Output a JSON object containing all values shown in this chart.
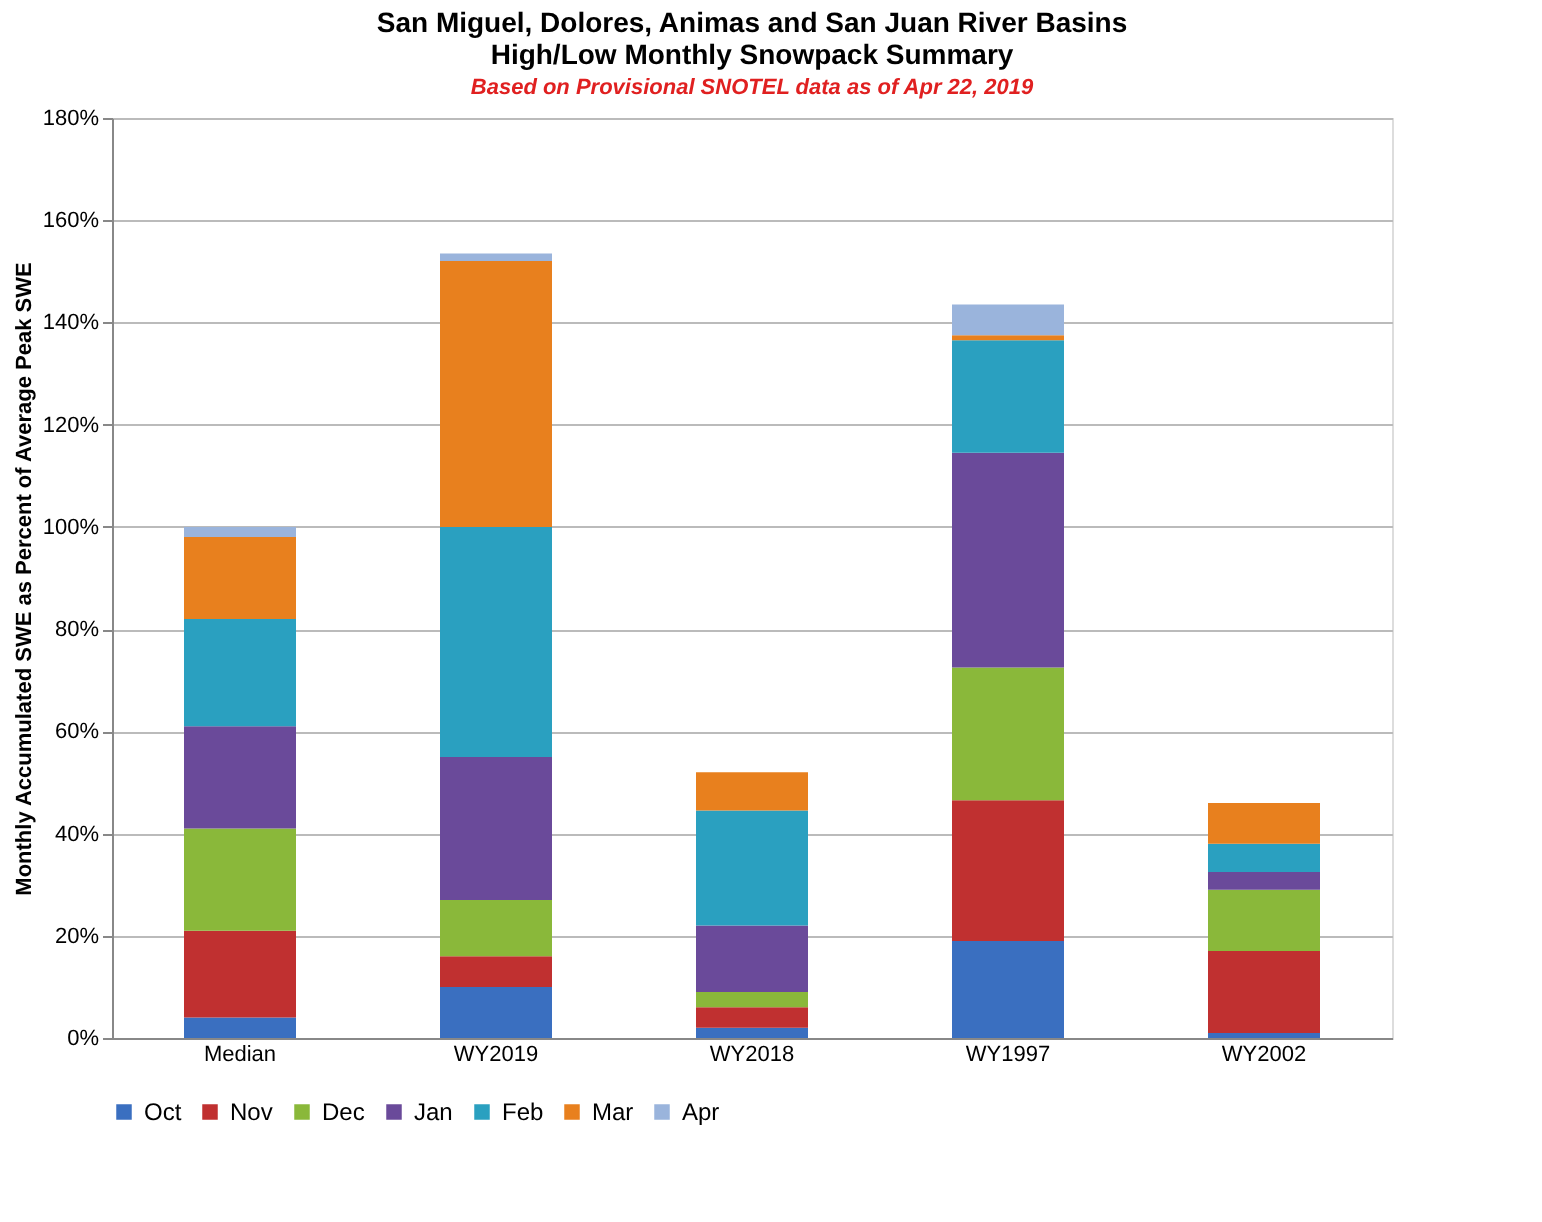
{
  "chart_data": {
    "type": "bar",
    "title": [
      "San Miguel, Dolores, Animas and San Juan River Basins",
      "High/Low Monthly  Snowpack Summary"
    ],
    "subtitle": "Based on Provisional SNOTEL data as of Apr 22, 2019",
    "ylabel": "Monthly Accumulated SWE as Percent of Average Peak SWE",
    "categories": [
      "Median",
      "WY2019",
      "WY2018",
      "WY1997",
      "WY2002"
    ],
    "stacked": true,
    "series": [
      {
        "name": "Oct",
        "color": "#3a6fc0",
        "values": [
          4,
          10,
          2,
          19,
          1
        ]
      },
      {
        "name": "Nov",
        "color": "#c03030",
        "values": [
          17,
          6,
          4,
          27.5,
          16
        ]
      },
      {
        "name": "Dec",
        "color": "#8ab83a",
        "values": [
          20,
          11,
          3,
          26,
          12
        ]
      },
      {
        "name": "Jan",
        "color": "#6a4a9a",
        "values": [
          20,
          28,
          13,
          42,
          3.5
        ]
      },
      {
        "name": "Feb",
        "color": "#2aa0c0",
        "values": [
          21,
          45,
          22.5,
          22,
          5.5
        ]
      },
      {
        "name": "Mar",
        "color": "#e8801e",
        "values": [
          16,
          52,
          7.5,
          1,
          8
        ]
      },
      {
        "name": "Apr",
        "color": "#9ab4dc",
        "values": [
          2,
          1.5,
          0,
          6,
          0
        ]
      }
    ],
    "ylim": [
      0,
      180
    ],
    "yticks": [
      {
        "value": 0,
        "label": "0%"
      },
      {
        "value": 20,
        "label": "20%"
      },
      {
        "value": 40,
        "label": "40%"
      },
      {
        "value": 60,
        "label": "60%"
      },
      {
        "value": 80,
        "label": "80%"
      },
      {
        "value": 100,
        "label": "100%"
      },
      {
        "value": 120,
        "label": "120%"
      },
      {
        "value": 140,
        "label": "140%"
      },
      {
        "value": 160,
        "label": "160%"
      },
      {
        "value": 180,
        "label": "180%"
      }
    ],
    "grid": "y",
    "legend": "bottom"
  }
}
